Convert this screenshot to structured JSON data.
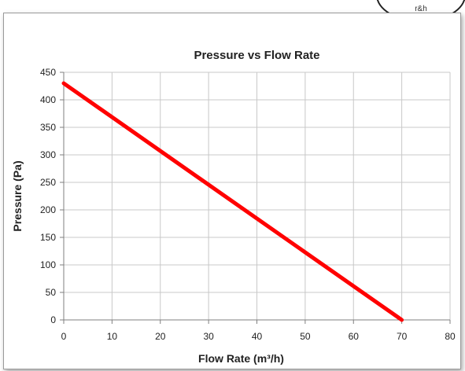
{
  "corner_badge": {
    "text": "r&h"
  },
  "chart_data": {
    "type": "line",
    "title": "Pressure vs Flow Rate",
    "xlabel": "Flow Rate (m³/h)",
    "ylabel": "Pressure (Pa)",
    "xlim": [
      0,
      80
    ],
    "ylim": [
      0,
      450
    ],
    "xticks": [
      0,
      10,
      20,
      30,
      40,
      50,
      60,
      70,
      80
    ],
    "yticks": [
      0,
      50,
      100,
      150,
      200,
      250,
      300,
      350,
      400,
      450
    ],
    "grid": true,
    "legend": "none",
    "series": [
      {
        "color": "#ff0000",
        "x": [
          0,
          70
        ],
        "y": [
          430,
          0
        ]
      }
    ]
  }
}
